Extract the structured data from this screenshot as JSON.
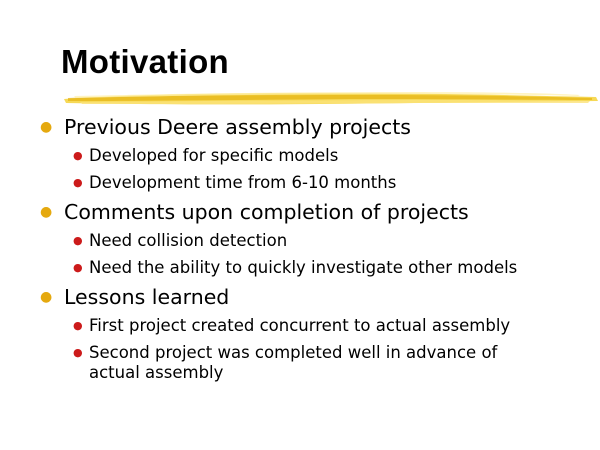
{
  "slide": {
    "title": "Motivation",
    "accent_color": "#f2c21a",
    "bullet_l1_color": "#e5a90f",
    "bullet_l2_color": "#cc1b1b",
    "sections": [
      {
        "heading": "Previous Deere assembly projects",
        "items": [
          "Developed for specific models",
          "Development time from 6-10 months"
        ]
      },
      {
        "heading": "Comments upon completion of projects",
        "items": [
          "Need collision detection",
          "Need the ability to quickly investigate other models"
        ]
      },
      {
        "heading": "Lessons learned",
        "items": [
          "First project created concurrent to actual assembly",
          "Second project was completed well in advance of actual assembly"
        ]
      }
    ]
  }
}
